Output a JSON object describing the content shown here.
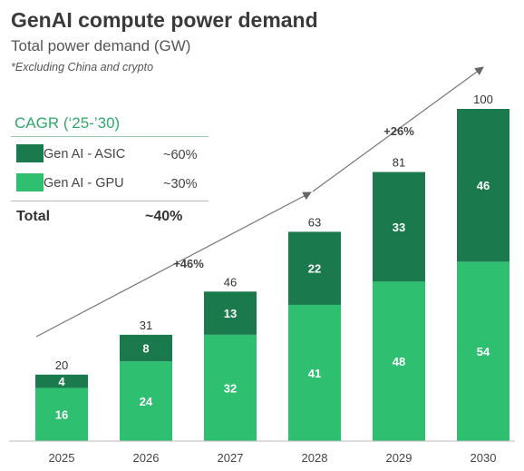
{
  "title": "GenAI compute power demand",
  "subtitle": "Total power demand (GW)",
  "footnote": "*Excluding China and crypto",
  "legend": {
    "cagr_title": "CAGR (‘25-’30)",
    "items": [
      {
        "label": "Gen AI - ASIC",
        "value": "~60%",
        "color": "#1b7a4d"
      },
      {
        "label": "Gen AI - GPU",
        "value": "~30%",
        "color": "#2fbf71"
      }
    ],
    "total_label": "Total",
    "total_value": "~40%"
  },
  "annotations": {
    "left_growth": "+46%",
    "right_growth": "+26%"
  },
  "chart_data": {
    "type": "bar",
    "stacked": true,
    "categories": [
      "2025",
      "2026",
      "2027",
      "2028",
      "2029",
      "2030"
    ],
    "series": [
      {
        "name": "Gen AI - GPU",
        "values": [
          16,
          24,
          32,
          41,
          48,
          54
        ],
        "color": "#2fbf71"
      },
      {
        "name": "Gen AI - ASIC",
        "values": [
          4,
          8,
          13,
          22,
          33,
          46
        ],
        "color": "#1b7a4d"
      }
    ],
    "totals": [
      20,
      31,
      46,
      63,
      81,
      100
    ],
    "ylim": [
      0,
      100
    ],
    "grid": false,
    "ylabel": "",
    "xlabel": ""
  }
}
